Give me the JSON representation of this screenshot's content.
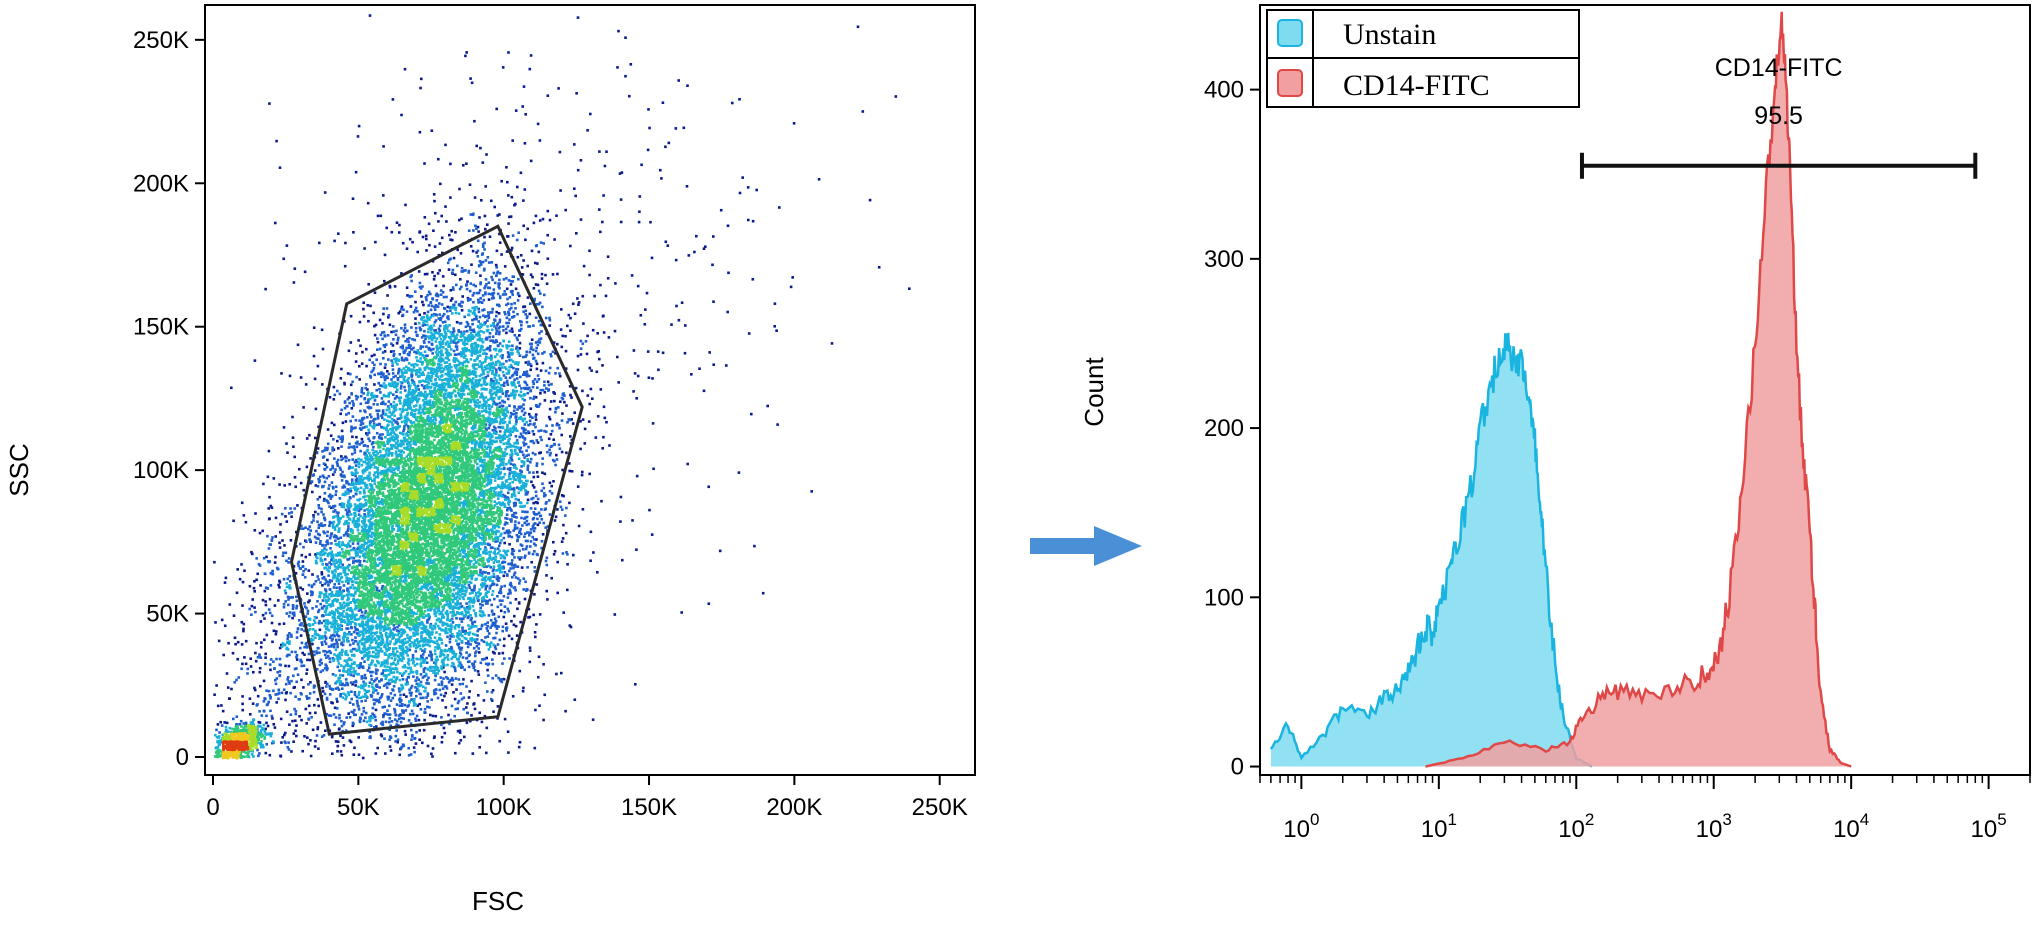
{
  "arrow_color": "#4a90d6",
  "chart_data": [
    {
      "type": "scatter",
      "title": "",
      "xlabel": "FSC",
      "ylabel": "SSC",
      "xlim": [
        0,
        262144
      ],
      "ylim": [
        0,
        262144
      ],
      "x_ticks": [
        {
          "value": 0,
          "label": "0"
        },
        {
          "value": 50000,
          "label": "50K"
        },
        {
          "value": 100000,
          "label": "100K"
        },
        {
          "value": 150000,
          "label": "150K"
        },
        {
          "value": 200000,
          "label": "200K"
        },
        {
          "value": 250000,
          "label": "250K"
        }
      ],
      "y_ticks": [
        {
          "value": 0,
          "label": "0"
        },
        {
          "value": 50000,
          "label": "50K"
        },
        {
          "value": 100000,
          "label": "100K"
        },
        {
          "value": 150000,
          "label": "150K"
        },
        {
          "value": 200000,
          "label": "200K"
        },
        {
          "value": 250000,
          "label": "250K"
        }
      ],
      "density_colors": [
        "#0a1a8c",
        "#1e5fd0",
        "#18b0d8",
        "#30c87a",
        "#a8dc28",
        "#f0c81e",
        "#e03c14"
      ],
      "clusters": [
        {
          "cx": 78000,
          "cy": 92000,
          "sx": 17000,
          "sy": 36000,
          "n": 11000,
          "rho": 0.28
        },
        {
          "cx": 55000,
          "cy": 62000,
          "sx": 14000,
          "sy": 28000,
          "n": 2500,
          "rho": 0.35
        },
        {
          "cx": 8000,
          "cy": 5000,
          "sx": 4500,
          "sy": 3500,
          "n": 800,
          "rho": 0.5
        },
        {
          "cx": 110000,
          "cy": 150000,
          "sx": 45000,
          "sy": 55000,
          "n": 450,
          "rho": 0.2
        },
        {
          "cx": 22000,
          "cy": 40000,
          "sx": 12000,
          "sy": 35000,
          "n": 500,
          "rho": 0.4
        }
      ],
      "gate": [
        [
          46000,
          158000
        ],
        [
          98000,
          185000
        ],
        [
          127000,
          122000
        ],
        [
          98000,
          14000
        ],
        [
          40000,
          8000
        ],
        [
          27000,
          68000
        ]
      ]
    },
    {
      "type": "area",
      "title": "",
      "xlabel": "",
      "ylabel": "Count",
      "x_scale": "log",
      "xlim": [
        0.5,
        200000
      ],
      "ylim": [
        -5,
        450
      ],
      "x_ticks": [
        {
          "value": 1,
          "base": "10",
          "exp": "0"
        },
        {
          "value": 10,
          "base": "10",
          "exp": "1"
        },
        {
          "value": 100,
          "base": "10",
          "exp": "2"
        },
        {
          "value": 1000,
          "base": "10",
          "exp": "3"
        },
        {
          "value": 10000,
          "base": "10",
          "exp": "4"
        },
        {
          "value": 100000,
          "base": "10",
          "exp": "5"
        }
      ],
      "y_ticks": [
        {
          "value": 0,
          "label": "0"
        },
        {
          "value": 100,
          "label": "100"
        },
        {
          "value": 200,
          "label": "200"
        },
        {
          "value": 300,
          "label": "300"
        },
        {
          "value": 400,
          "label": "400"
        }
      ],
      "legend": {
        "placement": "top-left",
        "entries": [
          {
            "label": "Unstain",
            "color": "#7fdcf0",
            "edge": "#1ab4e0"
          },
          {
            "label": "CD14-FITC",
            "color": "#f0a0a0",
            "edge": "#e04848"
          }
        ]
      },
      "series": [
        {
          "name": "Unstain",
          "fill": "#7fdcf0",
          "line": "#1ab4e0",
          "x": [
            0.6,
            0.8,
            1.0,
            1.5,
            2,
            3,
            4,
            5,
            6,
            7,
            8,
            9,
            10,
            12,
            14,
            17,
            20,
            24,
            28,
            32,
            36,
            40,
            45,
            50,
            55,
            60,
            70,
            80,
            100,
            130
          ],
          "y": [
            10,
            25,
            5,
            20,
            35,
            30,
            40,
            45,
            55,
            70,
            85,
            80,
            100,
            110,
            135,
            165,
            200,
            225,
            245,
            250,
            235,
            240,
            220,
            190,
            150,
            120,
            60,
            30,
            5,
            0
          ]
        },
        {
          "name": "CD14-FITC",
          "fill": "#f0a0a0",
          "line": "#e04848",
          "x": [
            8,
            15,
            30,
            60,
            90,
            110,
            150,
            200,
            300,
            500,
            700,
            900,
            1100,
            1300,
            1600,
            2000,
            2400,
            2800,
            3100,
            3300,
            3600,
            4000,
            4500,
            5000,
            5500,
            6000,
            7000,
            8500,
            10000
          ],
          "y": [
            0,
            5,
            15,
            10,
            15,
            30,
            40,
            45,
            40,
            45,
            50,
            55,
            65,
            100,
            160,
            250,
            340,
            400,
            440,
            420,
            350,
            250,
            180,
            140,
            90,
            40,
            10,
            2,
            0
          ]
        }
      ],
      "gate_bar": {
        "label": "CD14-FITC",
        "value": "95.5",
        "x_start": 110,
        "x_end": 80000,
        "y": 355
      }
    }
  ]
}
